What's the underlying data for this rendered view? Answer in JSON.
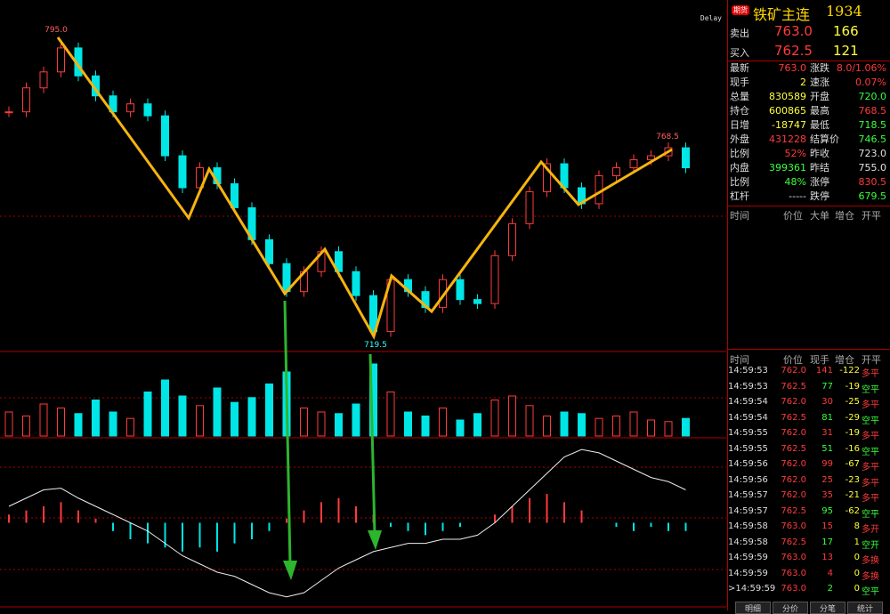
{
  "price_chart": {
    "type": "candle",
    "delay": "Delay",
    "high_label": "795.0",
    "low_label": "719.5",
    "recent_high_label": "768.5",
    "ylim": [
      716,
      804
    ],
    "closes": [
      776,
      782,
      786,
      792,
      785,
      780,
      776,
      778,
      775,
      765,
      757,
      762,
      758,
      752,
      744,
      738,
      731,
      736,
      741,
      736,
      730,
      721,
      734,
      731,
      727,
      734,
      729,
      728,
      740,
      748,
      756,
      763,
      757,
      753,
      760,
      762,
      764,
      765,
      767,
      762
    ],
    "volume": {
      "ylim": [
        0,
        100
      ],
      "values": [
        30,
        25,
        40,
        35,
        28,
        45,
        30,
        22,
        55,
        70,
        50,
        38,
        60,
        42,
        48,
        65,
        80,
        35,
        30,
        28,
        40,
        90,
        55,
        30,
        25,
        35,
        20,
        28,
        45,
        50,
        38,
        25,
        30,
        28,
        22,
        25,
        30,
        20,
        18,
        22
      ]
    },
    "macd": {
      "ylim": [
        -10,
        10
      ],
      "hist": [
        1,
        1.5,
        2,
        2.5,
        1.5,
        0.5,
        -1,
        -2,
        -2.5,
        -3,
        -3.5,
        -3,
        -3.5,
        -2.5,
        -2,
        -1,
        0.5,
        1.5,
        2.5,
        3,
        2,
        1,
        -0.5,
        -1,
        -1.5,
        -1,
        -0.5,
        0,
        1,
        2,
        3,
        3.5,
        2.5,
        1.5,
        0,
        -0.5,
        -1,
        -0.5,
        -1,
        -1
      ],
      "dif": [
        2,
        3,
        4,
        4.2,
        3,
        2,
        1,
        0,
        -1,
        -2.5,
        -4,
        -5,
        -6,
        -6.5,
        -7.5,
        -8.5,
        -9,
        -8.5,
        -7,
        -5.5,
        -4.5,
        -3.5,
        -3,
        -2.5,
        -2.5,
        -2,
        -2,
        -1.5,
        0,
        2,
        4,
        6,
        8,
        8.9,
        8.5,
        7.5,
        6.5,
        5.5,
        5,
        4
      ]
    }
  },
  "panel": {
    "badge": "期货",
    "title": "铁矿主连",
    "code": "1934",
    "quotes": [
      {
        "label": "卖出",
        "price": "763.0",
        "qty": "166"
      },
      {
        "label": "买入",
        "price": "762.5",
        "qty": "121"
      }
    ],
    "stats": [
      [
        {
          "k": "最新",
          "v": "763.0",
          "color": "#ff3b3b"
        },
        {
          "k": "涨跌",
          "v": "8.0/1.06%",
          "color": "#ff3b3b"
        }
      ],
      [
        {
          "k": "现手",
          "v": "2",
          "color": "#ffff3b"
        },
        {
          "k": "速涨",
          "v": "0.07%",
          "color": "#ff3b3b"
        }
      ],
      [
        {
          "k": "总量",
          "v": "830589",
          "color": "#ffff3b"
        },
        {
          "k": "开盘",
          "v": "720.0",
          "color": "#3bff3b"
        }
      ],
      [
        {
          "k": "持仓",
          "v": "600865",
          "color": "#ffff3b"
        },
        {
          "k": "最高",
          "v": "768.5",
          "color": "#ff3b3b"
        }
      ],
      [
        {
          "k": "日增",
          "v": "-18747",
          "color": "#ffff3b"
        },
        {
          "k": "最低",
          "v": "718.5",
          "color": "#3bff3b"
        }
      ],
      [
        {
          "k": "外盘",
          "v": "431228",
          "color": "#ff3b3b"
        },
        {
          "k": "结算价",
          "v": "746.5",
          "color": "#3bff3b"
        }
      ],
      [
        {
          "k": "比例",
          "v": "52%",
          "color": "#ff3b3b"
        },
        {
          "k": "昨收",
          "v": "723.0",
          "color": "#e0e0e0"
        }
      ],
      [
        {
          "k": "内盘",
          "v": "399361",
          "color": "#3bff3b"
        },
        {
          "k": "昨结",
          "v": "755.0",
          "color": "#e0e0e0"
        }
      ],
      [
        {
          "k": "比例",
          "v": "48%",
          "color": "#3bff3b"
        },
        {
          "k": "涨停",
          "v": "830.5",
          "color": "#ff3b3b"
        }
      ],
      [
        {
          "k": "杠杆",
          "v": "-----",
          "color": "#e0e0e0"
        },
        {
          "k": "跌停",
          "v": "679.5",
          "color": "#3bff3b"
        }
      ]
    ],
    "big_header": [
      "时间",
      "价位",
      "大单",
      "增仓",
      "开平"
    ],
    "trade_header": [
      "时间",
      "价位",
      "现手",
      "增仓",
      "开平"
    ],
    "trades": [
      [
        "14:59:53",
        "762.0",
        "141",
        "-122",
        "多平"
      ],
      [
        "14:59:53",
        "762.5",
        "77",
        "-19",
        "空平"
      ],
      [
        "14:59:54",
        "762.0",
        "30",
        "-25",
        "多平"
      ],
      [
        "14:59:54",
        "762.5",
        "81",
        "-29",
        "空平"
      ],
      [
        "14:59:55",
        "762.0",
        "31",
        "-19",
        "多平"
      ],
      [
        "14:59:55",
        "762.5",
        "51",
        "-16",
        "空平"
      ],
      [
        "14:59:56",
        "762.0",
        "99",
        "-67",
        "多平"
      ],
      [
        "14:59:56",
        "762.0",
        "25",
        "-23",
        "多平"
      ],
      [
        "14:59:57",
        "762.0",
        "35",
        "-21",
        "多平"
      ],
      [
        "14:59:57",
        "762.5",
        "95",
        "-62",
        "空平"
      ],
      [
        "14:59:58",
        "763.0",
        "15",
        "8",
        "多开"
      ],
      [
        "14:59:58",
        "762.5",
        "17",
        "1",
        "空开"
      ],
      [
        "14:59:59",
        "763.0",
        "13",
        "0",
        "多换"
      ],
      [
        "14:59:59",
        "763.0",
        "4",
        "0",
        "多换"
      ],
      [
        ">14:59:59",
        "763.0",
        "2",
        "0",
        "空平"
      ]
    ],
    "tabs": [
      "明细",
      "分价",
      "分笔",
      "统计"
    ]
  }
}
